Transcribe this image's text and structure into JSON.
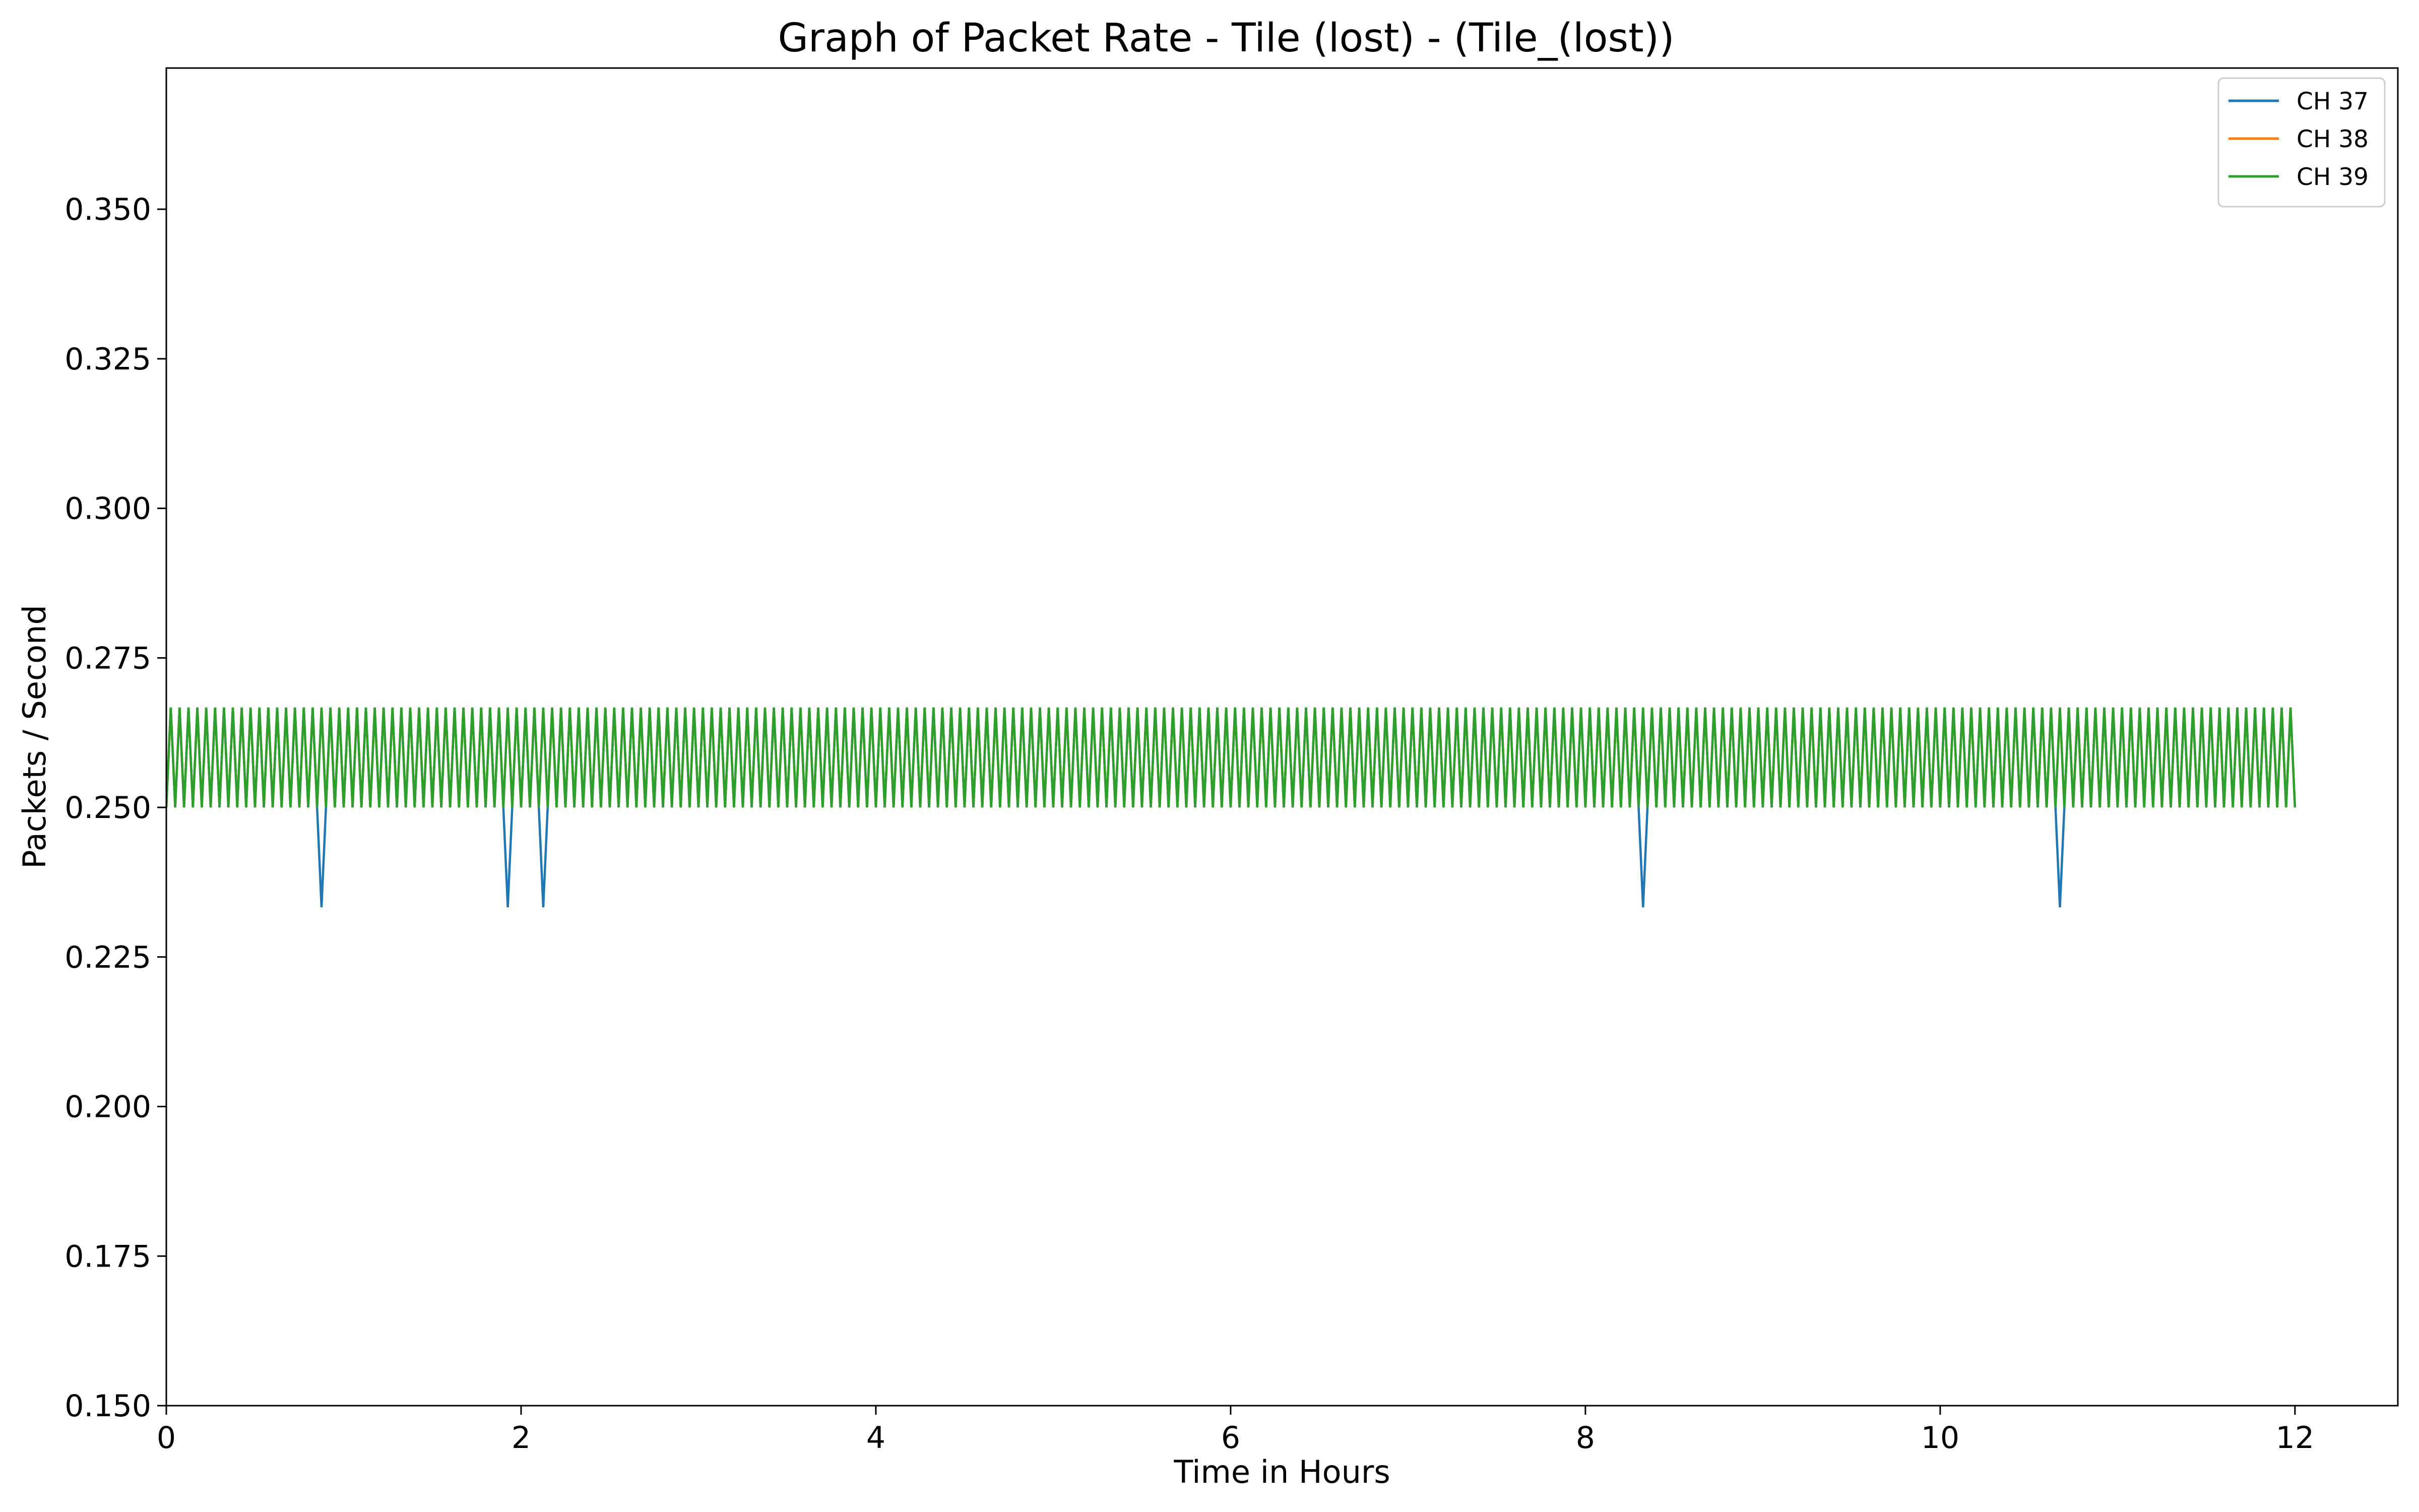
{
  "chart_data": {
    "type": "line",
    "title": "Graph of Packet Rate - Tile (lost) - (Tile_(lost))",
    "xlabel": "Time in Hours",
    "ylabel": "Packets / Second",
    "xlim": [
      0,
      12.58
    ],
    "ylim": [
      0.15,
      0.3736
    ],
    "x_ticks": [
      0,
      2,
      4,
      6,
      8,
      10,
      12
    ],
    "x_tick_labels": [
      "0",
      "2",
      "4",
      "6",
      "8",
      "10",
      "12"
    ],
    "y_ticks": [
      0.15,
      0.175,
      0.2,
      0.225,
      0.25,
      0.275,
      0.3,
      0.325,
      0.35
    ],
    "y_tick_labels": [
      "0.150",
      "0.175",
      "0.200",
      "0.225",
      "0.250",
      "0.275",
      "0.300",
      "0.325",
      "0.350"
    ],
    "grid": false,
    "legend_position": "top-right",
    "x_range": [
      0,
      12
    ],
    "oscillation": {
      "low": 0.25,
      "high": 0.2667,
      "cycles": 240
    },
    "series": [
      {
        "name": "CH 37",
        "color": "#1f77b4",
        "pattern": "oscillation",
        "dips": [
          {
            "x": 0.88,
            "y": 0.2333
          },
          {
            "x": 1.92,
            "y": 0.2333
          },
          {
            "x": 2.13,
            "y": 0.2333
          },
          {
            "x": 8.35,
            "y": 0.2333
          },
          {
            "x": 10.67,
            "y": 0.2333
          }
        ]
      },
      {
        "name": "CH 38",
        "color": "#ff7f0e",
        "pattern": "oscillation",
        "dips": []
      },
      {
        "name": "CH 39",
        "color": "#2ca02c",
        "pattern": "oscillation",
        "dips": []
      }
    ]
  }
}
